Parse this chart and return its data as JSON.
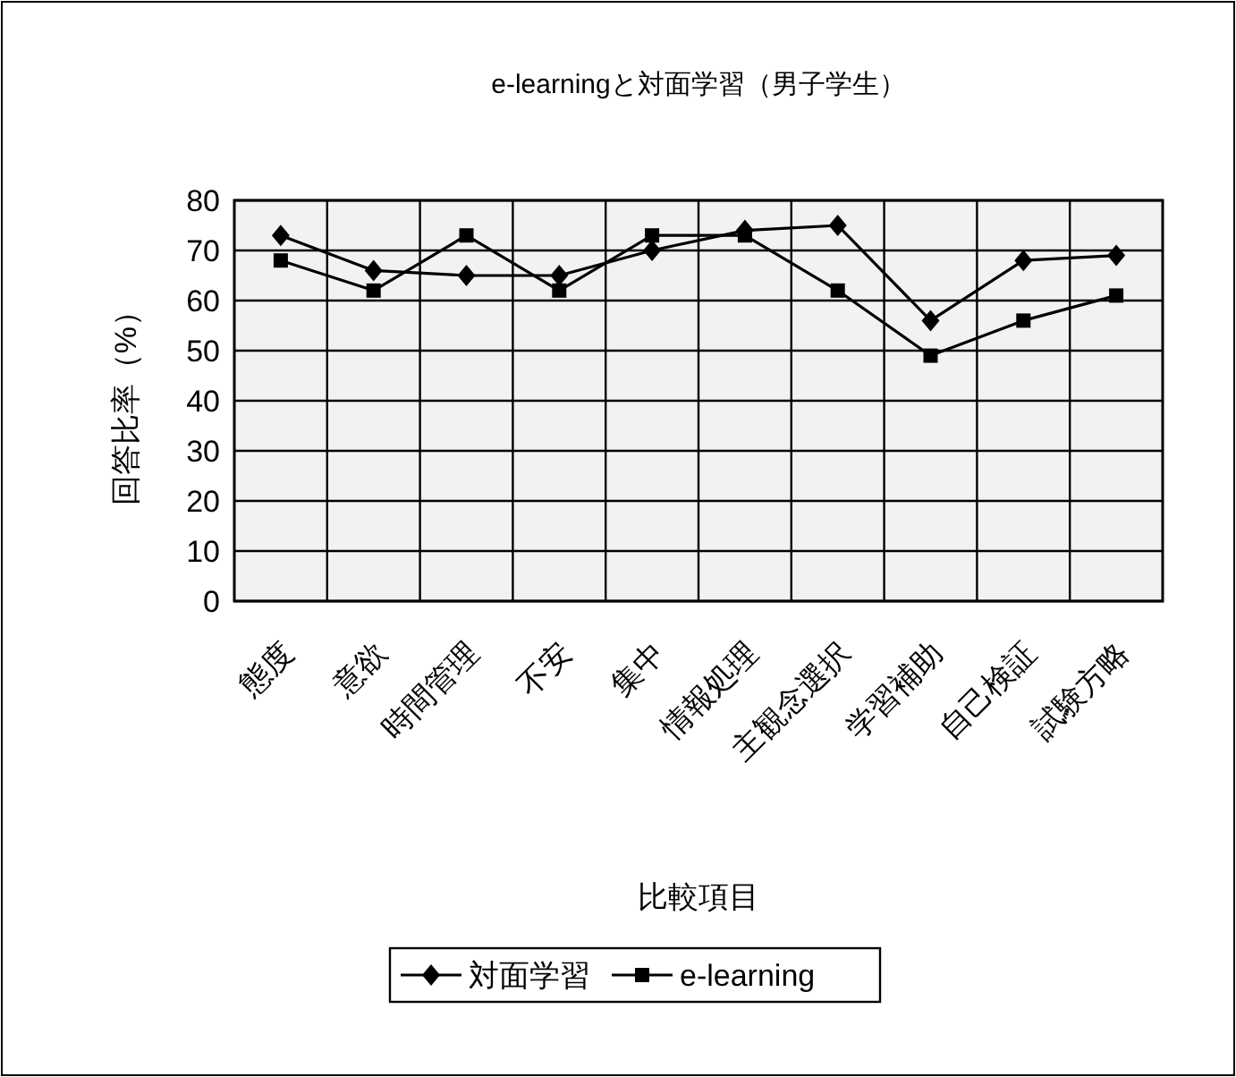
{
  "chart_data": {
    "type": "line",
    "title": "e-learningと対面学習（男子学生）",
    "xlabel": "比較項目",
    "ylabel": "回答比率（%）",
    "categories": [
      "態度",
      "意欲",
      "時間管理",
      "不安",
      "集中",
      "情報処理",
      "主観念選択",
      "学習補助",
      "自己検証",
      "試験方略"
    ],
    "series": [
      {
        "name": "対面学習",
        "color": "#000000",
        "marker": "diamond",
        "values": [
          73,
          66,
          65,
          65,
          70,
          74,
          75,
          56,
          68,
          69
        ]
      },
      {
        "name": "e-learning",
        "color": "#000000",
        "marker": "square",
        "values": [
          68,
          62,
          73,
          62,
          73,
          73,
          62,
          49,
          56,
          61
        ]
      }
    ],
    "ylim": [
      0,
      80
    ],
    "yticks": [
      0,
      10,
      20,
      30,
      40,
      50,
      60,
      70,
      80
    ],
    "grid": true,
    "legend": "bottom"
  }
}
